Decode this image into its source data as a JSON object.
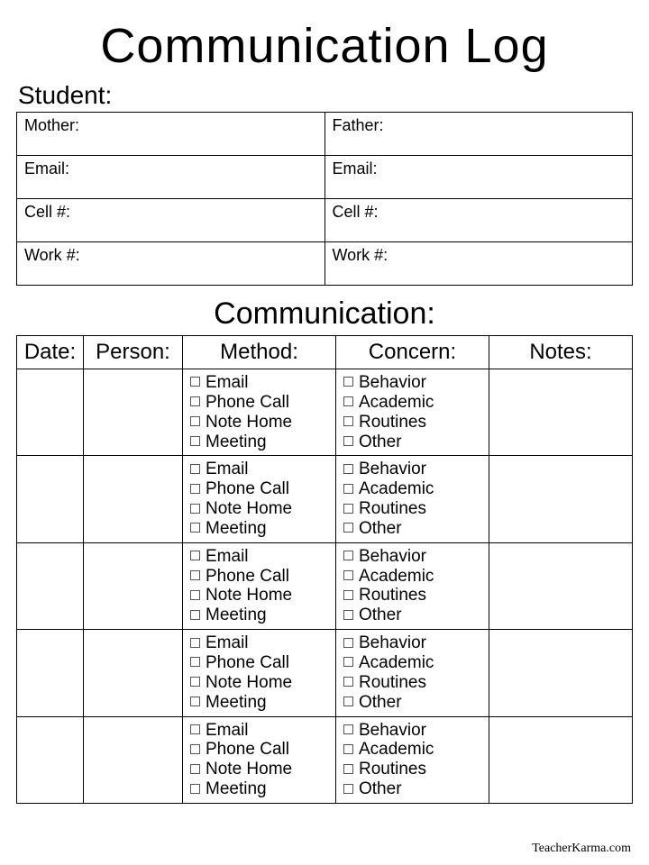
{
  "title": "Communication Log",
  "student_label": "Student:",
  "contact": {
    "rows": [
      {
        "left": "Mother:",
        "right": "Father:"
      },
      {
        "left": "Email:",
        "right": "Email:"
      },
      {
        "left": "Cell #:",
        "right": "Cell #:"
      },
      {
        "left": "Work #:",
        "right": "Work #:"
      }
    ]
  },
  "comm_heading": "Communication:",
  "log": {
    "headers": {
      "date": "Date:",
      "person": "Person:",
      "method": "Method:",
      "concern": "Concern:",
      "notes": "Notes:"
    },
    "method_options": [
      "Email",
      "Phone Call",
      "Note Home",
      "Meeting"
    ],
    "concern_options": [
      "Behavior",
      "Academic",
      "Routines",
      "Other"
    ],
    "row_count": 5
  },
  "footer": "TeacherKarma.com",
  "style": {
    "background_color": "#ffffff",
    "text_color": "#000000",
    "border_color": "#000000",
    "checkbox_border": "#555555",
    "title_fontsize": 54,
    "heading_fontsize": 34,
    "label_fontsize": 28,
    "header_fontsize": 24,
    "cell_fontsize": 19,
    "contact_fontsize": 18,
    "footer_fontsize": 14
  }
}
